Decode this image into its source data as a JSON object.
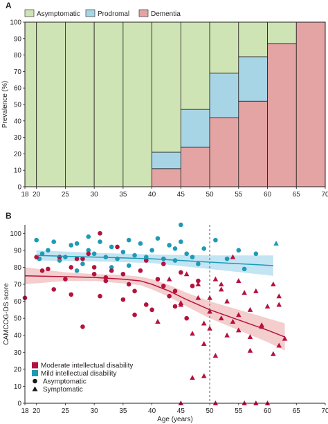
{
  "colors": {
    "asymptomatic": "#cfe4b4",
    "prodromal": "#a8d5e6",
    "dementia": "#e4a4a4",
    "moderate": "#b5123e",
    "mild": "#1e9ab5",
    "moderate_band": "#f2c4c4",
    "mild_band": "#b9dff0",
    "marker_black": "#1a1a1a",
    "stroke": "#231f20"
  },
  "chart_data": [
    {
      "panel": "A",
      "type": "bar",
      "subtype": "stacked-100",
      "title": "",
      "xlabel": "",
      "ylabel": "Prevalence (%)",
      "xlim": [
        18,
        70
      ],
      "ylim": [
        0,
        100
      ],
      "xticks": [
        "18",
        "20",
        "25",
        "30",
        "35",
        "40",
        "45",
        "50",
        "55",
        "60",
        "65",
        "70"
      ],
      "yticks": [
        "0",
        "10",
        "20",
        "30",
        "40",
        "50",
        "60",
        "70",
        "80",
        "90",
        "100"
      ],
      "legend_position": "top",
      "bins": [
        {
          "start": 18,
          "end": 20
        },
        {
          "start": 20,
          "end": 25
        },
        {
          "start": 25,
          "end": 30
        },
        {
          "start": 30,
          "end": 35
        },
        {
          "start": 35,
          "end": 40
        },
        {
          "start": 40,
          "end": 45
        },
        {
          "start": 45,
          "end": 50
        },
        {
          "start": 50,
          "end": 55
        },
        {
          "start": 55,
          "end": 60
        },
        {
          "start": 60,
          "end": 65
        },
        {
          "start": 65,
          "end": 70
        }
      ],
      "series": [
        {
          "name": "Asymptomatic",
          "color_key": "asymptomatic",
          "values": [
            100,
            100,
            100,
            100,
            100,
            79,
            53,
            31,
            21,
            13,
            0
          ]
        },
        {
          "name": "Prodromal",
          "color_key": "prodromal",
          "values": [
            0,
            0,
            0,
            0,
            0,
            10,
            23,
            27,
            27,
            0,
            0
          ]
        },
        {
          "name": "Dementia",
          "color_key": "dementia",
          "values": [
            0,
            0,
            0,
            0,
            0,
            11,
            24,
            42,
            52,
            87,
            100
          ]
        }
      ]
    },
    {
      "panel": "B",
      "type": "scatter",
      "title": "",
      "xlabel": "Age (years)",
      "ylabel": "CAMCOG-DS score",
      "xlim": [
        18,
        70
      ],
      "ylim": [
        0,
        105
      ],
      "xticks": [
        "18",
        "20",
        "25",
        "30",
        "35",
        "40",
        "45",
        "50",
        "55",
        "60",
        "65",
        "70"
      ],
      "yticks": [
        "0",
        "10",
        "20",
        "30",
        "40",
        "50",
        "60",
        "70",
        "80",
        "90",
        "100"
      ],
      "grid": false,
      "reference_line_x": 50,
      "legend_position": "bottom-left",
      "legend": [
        {
          "label": "Moderate intellectual disability",
          "kind": "square",
          "color_key": "moderate"
        },
        {
          "label": "Mild intellectual disability",
          "kind": "square",
          "color_key": "mild"
        },
        {
          "label": "Asymptomatic",
          "kind": "circle",
          "color_key": "marker_black"
        },
        {
          "label": "Symptomatic",
          "kind": "triangle",
          "color_key": "marker_black"
        }
      ],
      "fits": [
        {
          "group": "mild",
          "x": [
            20,
            30,
            40,
            50,
            61
          ],
          "y": [
            87,
            86,
            85,
            83,
            81
          ],
          "band_upper": [
            90,
            88.5,
            87.5,
            87,
            87
          ],
          "band_lower": [
            84,
            83.5,
            82.5,
            79,
            75
          ]
        },
        {
          "group": "moderate",
          "x": [
            18,
            25,
            30,
            35,
            38,
            40,
            43,
            46,
            50,
            55,
            60,
            63
          ],
          "y": [
            75,
            74.5,
            74,
            73,
            72,
            70,
            66,
            61,
            55,
            49,
            43,
            39
          ],
          "band_upper": [
            80,
            77,
            76,
            75.5,
            74.5,
            73,
            69.5,
            65,
            60,
            55,
            50,
            47
          ],
          "band_lower": [
            70,
            72,
            72,
            70.5,
            69.5,
            67,
            62.5,
            57,
            50,
            43,
            36,
            31
          ]
        }
      ],
      "points": {
        "mild_asymptomatic": {
          "x": [
            20,
            21,
            22,
            23,
            24,
            25,
            26,
            27,
            28,
            29,
            29,
            30,
            31,
            32,
            33,
            34,
            35,
            36,
            36,
            37,
            38,
            39,
            40,
            41,
            42,
            43,
            44,
            45,
            45,
            46,
            47,
            48,
            49,
            51,
            53,
            55,
            56,
            58,
            27,
            33,
            44,
            20.5
          ],
          "y": [
            96,
            88,
            90,
            95,
            84,
            86,
            93,
            94,
            82,
            98,
            90,
            88,
            95,
            86,
            92,
            85,
            89,
            96,
            81,
            87,
            94,
            86,
            90,
            97,
            85,
            93,
            84,
            105,
            95,
            88,
            86,
            82,
            91,
            96,
            85,
            90,
            79,
            88,
            78,
            80,
            91,
            85
          ]
        },
        "mild_symptomatic": {
          "x": [
            61.5
          ],
          "y": [
            94
          ]
        },
        "moderate_asymptomatic": {
          "x": [
            18,
            20,
            21,
            22,
            23,
            24,
            25,
            26,
            26,
            27,
            28,
            29,
            30,
            31,
            31,
            32,
            33,
            34,
            35,
            35,
            36,
            37,
            38,
            39,
            40,
            41,
            42,
            43,
            44,
            45,
            46,
            47,
            48,
            30,
            28,
            39,
            42,
            32,
            37,
            44
          ],
          "y": [
            62,
            86,
            78,
            79,
            67,
            86,
            73,
            64,
            80,
            85,
            45,
            88,
            80,
            100,
            63,
            72,
            78,
            92,
            76,
            61,
            70,
            66,
            78,
            58,
            55,
            73,
            82,
            63,
            66,
            77,
            50,
            69,
            72,
            76,
            85,
            84,
            69,
            74,
            52,
            57
          ]
        },
        "moderate_symptomatic": {
          "x": [
            41,
            43,
            45,
            46,
            47,
            48,
            49,
            50,
            50,
            51,
            51,
            52,
            53,
            53,
            54,
            55,
            55,
            56,
            57,
            57,
            58,
            59,
            60,
            61,
            62,
            63,
            47,
            49,
            50,
            52,
            45,
            56,
            58,
            60,
            62,
            51,
            49,
            54,
            45,
            52,
            55,
            57,
            59,
            61,
            62,
            48
          ],
          "y": [
            48,
            73,
            59,
            76,
            41,
            70,
            35,
            44,
            62,
            73,
            28,
            50,
            60,
            40,
            86,
            52,
            43,
            65,
            31,
            55,
            66,
            46,
            57,
            29,
            63,
            38,
            15,
            16,
            54,
            70,
            0,
            0,
            0,
            0,
            34,
            0,
            47,
            48,
            58,
            67,
            72,
            39,
            45,
            70,
            58,
            62
          ]
        }
      }
    }
  ]
}
